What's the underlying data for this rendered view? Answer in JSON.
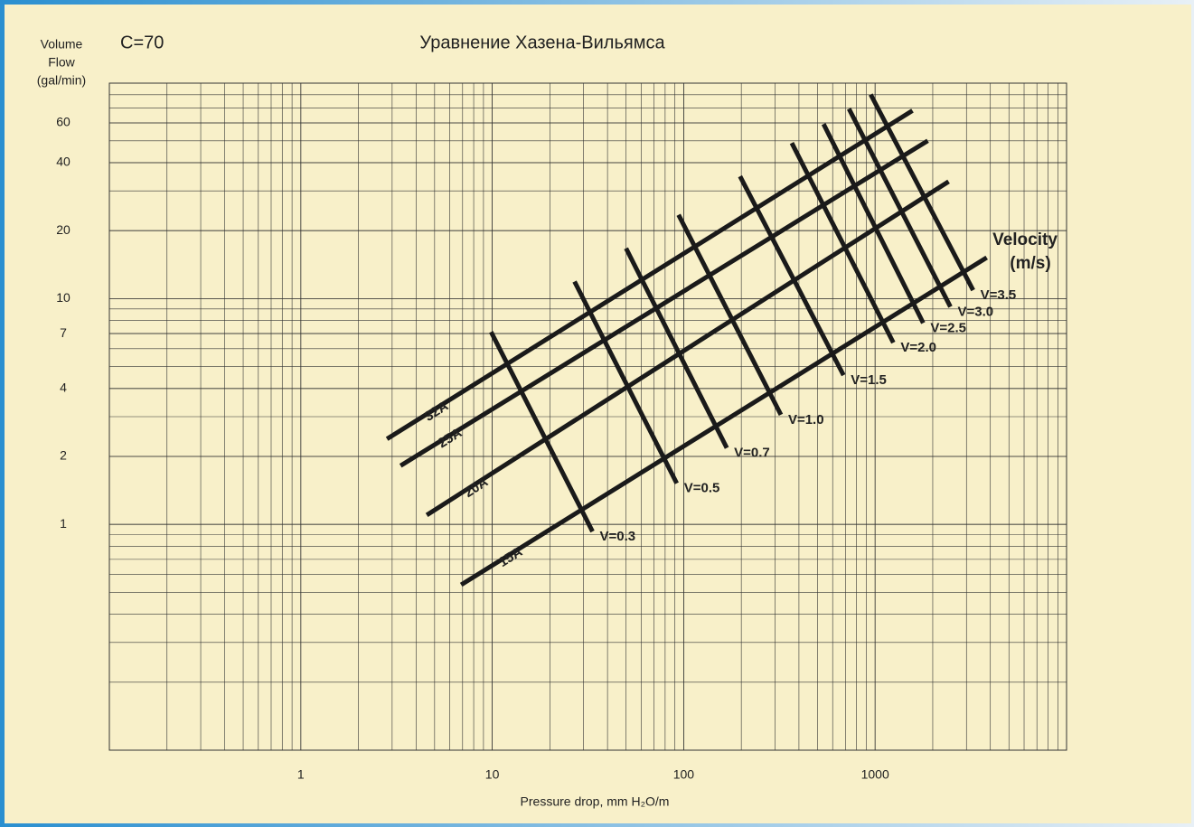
{
  "chart_data": {
    "type": "line",
    "title": "Уравнение Хазена-Вильямса",
    "subtitle": "C=70",
    "y_label": [
      "Volume",
      "Flow",
      "(gal/min)"
    ],
    "x_label": "Pressure drop, mm H₂O/m",
    "annotation": [
      "Velocity",
      "(m/s)"
    ],
    "log_x": true,
    "log_y": true,
    "grid": true,
    "xlim": [
      0.1,
      10000
    ],
    "ylim": [
      0.1,
      90
    ],
    "xticks": [
      1,
      10,
      100,
      1000
    ],
    "yticks": [
      1,
      2,
      4,
      7,
      10,
      20,
      40,
      60
    ],
    "series": [
      {
        "name": "32A",
        "color": "#1a1a1a",
        "x": [
          2.82,
          1567
        ],
        "values": [
          2.39,
          68
        ]
      },
      {
        "name": "25A",
        "color": "#1a1a1a",
        "x": [
          3.32,
          1884
        ],
        "values": [
          1.82,
          50
        ]
      },
      {
        "name": "20A",
        "color": "#1a1a1a",
        "x": [
          4.55,
          2421
        ],
        "values": [
          1.1,
          33
        ]
      },
      {
        "name": "15A",
        "color": "#1a1a1a",
        "x": [
          6.88,
          3827
        ],
        "values": [
          0.54,
          15.2
        ]
      },
      {
        "name": "V=0.3",
        "color": "#1a1a1a",
        "x": [
          9.86,
          33.4
        ],
        "values": [
          7.12,
          0.93
        ]
      },
      {
        "name": "V=0.5",
        "color": "#1a1a1a",
        "x": [
          26.9,
          92
        ],
        "values": [
          11.9,
          1.52
        ]
      },
      {
        "name": "V=0.7",
        "color": "#1a1a1a",
        "x": [
          50,
          168
        ],
        "values": [
          16.7,
          2.18
        ]
      },
      {
        "name": "V=1.0",
        "color": "#1a1a1a",
        "x": [
          94,
          322
        ],
        "values": [
          23.5,
          3.06
        ]
      },
      {
        "name": "V=1.5",
        "color": "#1a1a1a",
        "x": [
          197,
          684
        ],
        "values": [
          34.8,
          4.58
        ]
      },
      {
        "name": "V=2.0",
        "color": "#1a1a1a",
        "x": [
          367,
          1245
        ],
        "values": [
          48.9,
          6.38
        ]
      },
      {
        "name": "V=2.5",
        "color": "#1a1a1a",
        "x": [
          538,
          1783
        ],
        "values": [
          59.3,
          7.8
        ]
      },
      {
        "name": "V=3.0",
        "color": "#1a1a1a",
        "x": [
          730,
          2473
        ],
        "values": [
          69.3,
          9.2
        ]
      },
      {
        "name": "V=3.5",
        "color": "#1a1a1a",
        "x": [
          948,
          3250
        ],
        "values": [
          80.2,
          10.9
        ]
      }
    ]
  }
}
